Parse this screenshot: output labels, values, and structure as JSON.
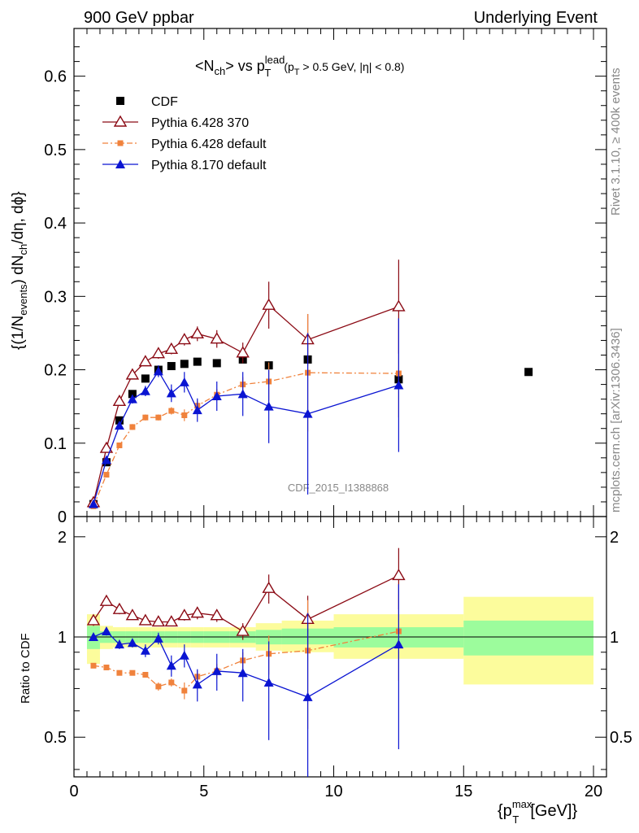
{
  "header": {
    "left": "900 GeV ppbar",
    "right": "Underlying Event"
  },
  "side_labels": {
    "rivet": "Rivet 3.1.10, ≥ 400k events",
    "mcplots": "mcplots.cern.ch [arXiv:1306.3436]"
  },
  "analysis_id": "CDF_2015_I1388868",
  "colors": {
    "cdf": "#000000",
    "pythia6_370": "#8b0a14",
    "pythia6_default": "#f0823c",
    "pythia8": "#0a14d2",
    "band_inner": "#9cfc9c",
    "band_outer": "#fcfc9c"
  },
  "chart_data": [
    {
      "type": "scatter",
      "title": "<N_ch> vs p_T^lead (p_T > 0.5 GeV, |η| < 0.8)",
      "xlabel": "{p_T^max [GeV]}",
      "ylabel": "{(1/N_events) dN_ch/dη, dϕ}",
      "xlim": [
        0,
        20.5
      ],
      "ylim": [
        0,
        0.665
      ],
      "yticks": [
        0,
        0.1,
        0.2,
        0.3,
        0.4,
        0.5,
        0.6
      ],
      "ytick_labels": [
        "0",
        "0.1",
        "0.2",
        "0.3",
        "0.4",
        "0.5",
        "0.6"
      ],
      "legend_position": "top-left",
      "series": [
        {
          "name": "CDF",
          "marker": "square",
          "x": [
            0.75,
            1.25,
            1.75,
            2.25,
            2.75,
            3.25,
            3.75,
            4.25,
            4.75,
            5.5,
            6.5,
            7.5,
            9.0,
            12.5,
            17.5
          ],
          "y": [
            0.017,
            0.074,
            0.131,
            0.167,
            0.188,
            0.2,
            0.205,
            0.208,
            0.211,
            0.209,
            0.214,
            0.206,
            0.214,
            0.187,
            0.197
          ]
        },
        {
          "name": "Pythia 6.428 370",
          "marker": "open-triangle",
          "x": [
            0.75,
            1.25,
            1.75,
            2.25,
            2.75,
            3.25,
            3.75,
            4.25,
            4.75,
            5.5,
            6.5,
            7.5,
            9.0,
            12.5
          ],
          "y": [
            0.019,
            0.093,
            0.157,
            0.193,
            0.211,
            0.222,
            0.228,
            0.241,
            0.249,
            0.242,
            0.223,
            0.288,
            0.241,
            0.286
          ],
          "err": [
            0.003,
            0.005,
            0.006,
            0.006,
            0.006,
            0.007,
            0.007,
            0.008,
            0.01,
            0.012,
            0.014,
            0.032,
            0.035,
            0.064
          ]
        },
        {
          "name": "Pythia 6.428 default",
          "marker": "small-square",
          "x": [
            0.75,
            1.25,
            1.75,
            2.25,
            2.75,
            3.25,
            3.75,
            4.25,
            4.75,
            5.5,
            6.5,
            7.5,
            9.0,
            12.5
          ],
          "y": [
            0.014,
            0.057,
            0.097,
            0.122,
            0.135,
            0.135,
            0.144,
            0.138,
            0.151,
            0.166,
            0.18,
            0.184,
            0.196,
            0.195
          ],
          "err": [
            0.002,
            0.003,
            0.003,
            0.004,
            0.004,
            0.004,
            0.005,
            0.008,
            0.007,
            0.008,
            0.01,
            0.026,
            0.08,
            0.06
          ]
        },
        {
          "name": "Pythia 8.170 default",
          "marker": "filled-triangle",
          "x": [
            0.75,
            1.25,
            1.75,
            2.25,
            2.75,
            3.25,
            3.75,
            4.25,
            4.75,
            5.5,
            6.5,
            7.5,
            9.0,
            12.5
          ],
          "y": [
            0.017,
            0.077,
            0.124,
            0.16,
            0.171,
            0.198,
            0.168,
            0.183,
            0.145,
            0.164,
            0.167,
            0.15,
            0.14,
            0.179
          ],
          "err": [
            0.002,
            0.004,
            0.005,
            0.006,
            0.007,
            0.008,
            0.012,
            0.014,
            0.016,
            0.02,
            0.03,
            0.05,
            0.11,
            0.091
          ]
        }
      ]
    },
    {
      "type": "scatter",
      "ylabel": "Ratio to CDF",
      "xlabel": "{p_T^max [GeV]}",
      "xlim": [
        0,
        20.5
      ],
      "ylim": [
        0.38,
        2.3
      ],
      "y_scale": "log",
      "yticks": [
        0.5,
        1,
        2
      ],
      "ytick_labels": [
        "0.5",
        "1",
        "2"
      ],
      "xticks": [
        0,
        5,
        10,
        15,
        20
      ],
      "xtick_labels": [
        "0",
        "5",
        "10",
        "15",
        "20"
      ],
      "reference_band": {
        "x_low": [
          0.5,
          1.0,
          1.5,
          2.0,
          2.5,
          3.0,
          3.5,
          4.0,
          4.5,
          5.0,
          6.0,
          7.0,
          8.0,
          10.0,
          15.0
        ],
        "x_high": [
          1.0,
          1.5,
          2.0,
          2.5,
          3.0,
          3.5,
          4.0,
          4.5,
          5.0,
          6.0,
          7.0,
          8.0,
          10.0,
          15.0,
          20.0
        ],
        "inner_low": [
          0.92,
          0.96,
          0.96,
          0.96,
          0.96,
          0.96,
          0.96,
          0.96,
          0.96,
          0.96,
          0.96,
          0.95,
          0.95,
          0.93,
          0.88
        ],
        "inner_high": [
          1.08,
          1.04,
          1.04,
          1.04,
          1.04,
          1.04,
          1.04,
          1.04,
          1.04,
          1.04,
          1.04,
          1.05,
          1.06,
          1.07,
          1.12
        ],
        "outer_low": [
          0.83,
          0.92,
          0.93,
          0.93,
          0.93,
          0.93,
          0.93,
          0.93,
          0.93,
          0.93,
          0.93,
          0.91,
          0.9,
          0.86,
          0.72
        ],
        "outer_high": [
          1.17,
          1.08,
          1.07,
          1.07,
          1.07,
          1.07,
          1.07,
          1.07,
          1.07,
          1.07,
          1.07,
          1.1,
          1.12,
          1.17,
          1.32
        ]
      },
      "series": [
        {
          "name": "Pythia 6.428 370",
          "x": [
            0.75,
            1.25,
            1.75,
            2.25,
            2.75,
            3.25,
            3.75,
            4.25,
            4.75,
            5.5,
            6.5,
            7.5,
            9.0,
            12.5
          ],
          "y": [
            1.12,
            1.28,
            1.21,
            1.16,
            1.12,
            1.11,
            1.11,
            1.16,
            1.18,
            1.16,
            1.04,
            1.4,
            1.13,
            1.53
          ],
          "err": [
            0.04,
            0.04,
            0.04,
            0.03,
            0.03,
            0.03,
            0.03,
            0.04,
            0.05,
            0.05,
            0.06,
            0.14,
            0.2,
            0.32
          ]
        },
        {
          "name": "Pythia 6.428 default",
          "x": [
            0.75,
            1.25,
            1.75,
            2.25,
            2.75,
            3.25,
            3.75,
            4.25,
            4.75,
            5.5,
            6.5,
            7.5,
            9.0,
            12.5
          ],
          "y": [
            0.82,
            0.81,
            0.78,
            0.78,
            0.77,
            0.71,
            0.73,
            0.69,
            0.76,
            0.79,
            0.85,
            0.89,
            0.91,
            1.04
          ],
          "err": [
            0.01,
            0.01,
            0.01,
            0.01,
            0.01,
            0.02,
            0.02,
            0.04,
            0.03,
            0.04,
            0.05,
            0.12,
            0.38,
            0.3
          ]
        },
        {
          "name": "Pythia 8.170 default",
          "x": [
            0.75,
            1.25,
            1.75,
            2.25,
            2.75,
            3.25,
            3.75,
            4.25,
            4.75,
            5.5,
            6.5,
            7.5,
            9.0,
            12.5
          ],
          "y": [
            1.0,
            1.04,
            0.95,
            0.96,
            0.91,
            0.99,
            0.82,
            0.88,
            0.72,
            0.79,
            0.78,
            0.73,
            0.66,
            0.95
          ],
          "err": [
            0.02,
            0.03,
            0.03,
            0.03,
            0.04,
            0.04,
            0.06,
            0.07,
            0.08,
            0.1,
            0.14,
            0.24,
            0.52,
            0.49
          ]
        }
      ]
    }
  ]
}
